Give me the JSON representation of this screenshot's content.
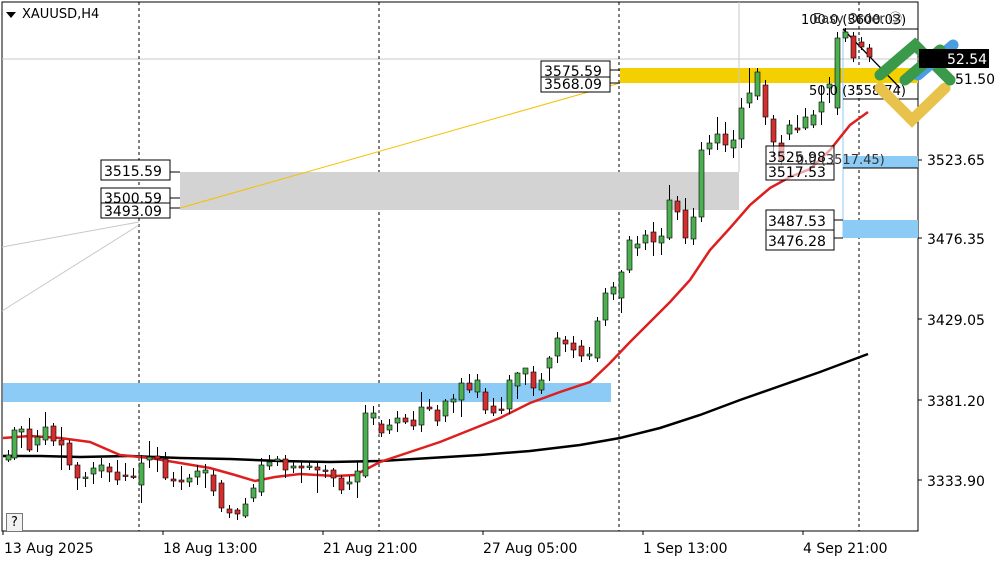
{
  "window": {
    "symbol_label": "XAUUSD,H4",
    "help_button": "?"
  },
  "colors": {
    "bull_candle": "#4caf50",
    "bear_candle": "#d32f2f",
    "ma_fast": "#dd1f1f",
    "ma_slow": "#000000",
    "supply_zone": "#f5d000",
    "gray_zone": "#d3d3d3",
    "demand_zone": "#8ccbf5",
    "price_tag_bg": "#000000"
  },
  "price_axis": {
    "labels": [
      "3523.65",
      "3476.35",
      "3429.05",
      "3381.20",
      "3333.90"
    ],
    "current_price": "3562.54",
    "current_price_visible": "52.54",
    "second_price": "3551.50",
    "second_price_visible": "51.50"
  },
  "time_axis": {
    "labels": [
      "13 Aug 2025",
      "18 Aug 13:00",
      "21 Aug 21:00",
      "27 Aug 05:00",
      "1 Sep 13:00",
      "4 Sep 21:00"
    ]
  },
  "annotations": {
    "fib_top": "100.0 (3600.03)",
    "fib_mid": "50.0 (3558.74)",
    "fib_low": "0.0 (3517.45)",
    "easy_order": "Easy Order Ⓢ",
    "yellow_zone_high": "3575.59",
    "yellow_zone_low": "3568.09",
    "gray_zone_high": "3515.59",
    "gray_zone_mid": "3500.59",
    "gray_zone_low": "3493.09",
    "right_box_1": "3525.98",
    "right_box_2": "3517.53",
    "blue_zone_high": "3487.53",
    "blue_zone_low": "3476.28"
  },
  "chart_data": {
    "type": "candlestick",
    "title": "XAUUSD,H4",
    "xlabel": "",
    "ylabel": "",
    "x_tick_labels": [
      "13 Aug 2025",
      "18 Aug 13:00",
      "21 Aug 21:00",
      "27 Aug 05:00",
      "1 Sep 13:00",
      "4 Sep 21:00"
    ],
    "y_tick_labels": [
      3523.65,
      3476.35,
      3429.05,
      3381.2,
      3333.9
    ],
    "ylim": [
      3305,
      3615
    ],
    "grid": false,
    "series": [
      {
        "name": "Moving Average (fast, red)",
        "type": "line"
      },
      {
        "name": "Moving Average (slow, black)",
        "type": "line"
      },
      {
        "name": "XAUUSD H4 candles",
        "type": "candlestick"
      }
    ],
    "zones": [
      {
        "name": "supply",
        "color": "yellow",
        "high": 3575.59,
        "low": 3568.09
      },
      {
        "name": "gray",
        "high": 3515.59,
        "low": 3493.09
      },
      {
        "name": "demand-right",
        "color": "blue",
        "high": 3487.53,
        "low": 3476.28
      },
      {
        "name": "demand-left",
        "color": "blue",
        "high": 3388,
        "low": 3379
      }
    ],
    "fibonacci": [
      {
        "level": 100.0,
        "price": 3600.03
      },
      {
        "level": 50.0,
        "price": 3558.74
      },
      {
        "level": 0.0,
        "price": 3517.45
      }
    ],
    "current_price": 3562.54
  }
}
